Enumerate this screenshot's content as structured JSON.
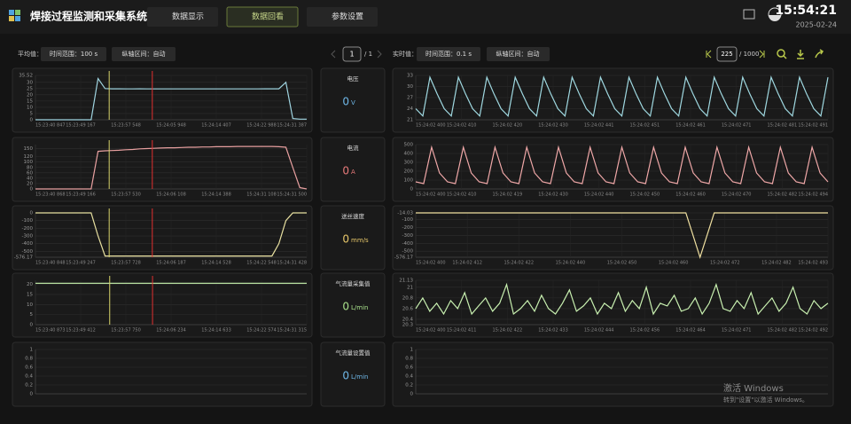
{
  "header": {
    "title": "焊接过程监测和采集系统",
    "tabs": [
      "数据显示",
      "数据回看",
      "参数设置"
    ],
    "time": "15:54:21",
    "date": "2025-02-24"
  },
  "left_toolbar": {
    "label": "平均值：",
    "range": "时间范围：100 s",
    "region": "纵轴区间：自动"
  },
  "pager": {
    "current": 1,
    "total": "/ 1"
  },
  "right_toolbar": {
    "label": "实时值：",
    "range": "时间范围：0.1 s",
    "region": "纵轴区间：自动",
    "frame": 225,
    "frame_total": "/ 1000"
  },
  "readouts": [
    {
      "name": "电压",
      "value": 0,
      "unit": "V",
      "color": "#6fb8e8"
    },
    {
      "name": "电流",
      "value": 0,
      "unit": "A",
      "color": "#e87a7a"
    },
    {
      "name": "送丝速度",
      "value": 0,
      "unit": "mm/s",
      "color": "#e8c86a"
    },
    {
      "name": "气流量采集值",
      "value": 0,
      "unit": "L/min",
      "color": "#a8e08a"
    },
    {
      "name": "气流量设置值",
      "value": 0,
      "unit": "L/min",
      "color": "#6fb8e8"
    }
  ],
  "left_charts": [
    {
      "type": "line",
      "color": "#9fd4e0",
      "ylim": [
        0,
        35.52
      ],
      "yticks": [
        0,
        5,
        10,
        15,
        20,
        25,
        30,
        35.52
      ],
      "xtick_labels": [
        "15:23:40 847",
        "15:23:49 167",
        "15:23:57 548",
        "15:24:05 948",
        "15:24:14 407",
        "15:24:22 988",
        "15:24:31 387"
      ],
      "values": [
        0,
        0,
        0,
        0,
        0,
        0,
        0,
        0,
        0,
        33,
        25,
        24.8,
        24.8,
        24.7,
        24.7,
        24.8,
        24.7,
        24.7,
        24.7,
        24.7,
        24.7,
        24.7,
        24.7,
        24.7,
        24.7,
        24.7,
        24.7,
        24.7,
        24.7,
        24.7,
        24.7,
        24.7,
        24.7,
        24.8,
        24.8,
        24.8,
        30,
        1,
        0.5,
        0.5
      ],
      "cursors": [
        {
          "color": "#d8d46a",
          "x": 10.6
        },
        {
          "color": "#e03030",
          "x": 16.8
        }
      ]
    },
    {
      "type": "line",
      "color": "#e8a0a0",
      "ylim": [
        0,
        165
      ],
      "yticks": [
        0,
        20,
        40,
        60,
        80,
        100,
        120,
        150
      ],
      "xtick_labels": [
        "15:23:40 868",
        "15:23:49 166",
        "15:23:57 530",
        "15:24:06 108",
        "15:24:14 388",
        "15:24:31 108",
        "15:24:31 500"
      ],
      "values": [
        0,
        0,
        0,
        0,
        0,
        0,
        0,
        0,
        0,
        140,
        142,
        143,
        144,
        146,
        147,
        149,
        150,
        151,
        152,
        153,
        153,
        154,
        155,
        155,
        156,
        156,
        157,
        157,
        157,
        158,
        158,
        158,
        158,
        158,
        158,
        157,
        155,
        80,
        5,
        0
      ],
      "cursors": [
        {
          "color": "#d8d46a",
          "x": 10.6
        },
        {
          "color": "#e03030",
          "x": 16.8
        }
      ]
    },
    {
      "type": "line",
      "color": "#e8e0a0",
      "ylim": [
        -576.17,
        0
      ],
      "yticks": [
        -576.17,
        -500,
        -400,
        -300,
        -200,
        -100,
        0
      ],
      "xtick_labels": [
        "15:23:40 848",
        "15:23:49 247",
        "15:23:57 728",
        "15:24:06 187",
        "15:24:14 528",
        "15:24:22 548",
        "15:24:31 428"
      ],
      "values": [
        0,
        0,
        0,
        0,
        0,
        0,
        0,
        0,
        0,
        -300,
        -560,
        -560,
        -560,
        -560,
        -560,
        -560,
        -560,
        -560,
        -560,
        -560,
        -560,
        -560,
        -560,
        -560,
        -560,
        -560,
        -560,
        -560,
        -560,
        -560,
        -560,
        -560,
        -560,
        -560,
        -560,
        -400,
        -100,
        0,
        0,
        0
      ],
      "cursors": [
        {
          "color": "#d8d46a",
          "x": 10.6
        },
        {
          "color": "#e03030",
          "x": 16.8
        }
      ]
    },
    {
      "type": "line",
      "color": "#b8e0a0",
      "ylim": [
        0,
        22
      ],
      "yticks": [
        0,
        5,
        10,
        15,
        20
      ],
      "xtick_labels": [
        "15:23:40 873",
        "15:23:49 412",
        "15:23:57 750",
        "15:24:06 234",
        "15:24:14 633",
        "15:24:22 574",
        "15:24:31 315"
      ],
      "values": [
        20.5,
        20.5,
        20.5,
        20.5,
        20.5,
        20.5,
        20.5,
        20.5,
        20.5,
        20.5,
        20.5,
        20.5,
        20.5,
        20.5,
        20.5,
        20.5,
        20.5,
        20.5,
        20.5,
        20.5
      ],
      "cursors": [
        {
          "color": "#d8d46a",
          "x": 5.2
        },
        {
          "color": "#e03030",
          "x": 8.2
        }
      ]
    },
    {
      "type": "line",
      "ylim": [
        0,
        1
      ],
      "yticks": [
        0,
        0.2,
        0.4,
        0.6,
        0.8,
        1
      ]
    }
  ],
  "right_charts": [
    {
      "type": "line",
      "color": "#9fd8e0",
      "ylim": [
        21,
        33
      ],
      "yticks": [
        21,
        24,
        27,
        30,
        33
      ],
      "xtick_labels": [
        "15:24:02 400",
        "15:24:02 410",
        "15:24:02 420",
        "15:24:02 430",
        "15:24:02 441",
        "15:24:02 451",
        "15:24:02 461",
        "15:24:02 471",
        "15:24:02 481",
        "15:24:02 491"
      ],
      "values": [
        24,
        22,
        32.5,
        28,
        24,
        22,
        32.5,
        28,
        24,
        22,
        32.5,
        28,
        24,
        22,
        32.5,
        28,
        24,
        22,
        32.5,
        28,
        24,
        22,
        32.5,
        28,
        24,
        22,
        32.5,
        28,
        24,
        22,
        32.5,
        28,
        24,
        22,
        32.5,
        28,
        24,
        22,
        32.5,
        28,
        24,
        22,
        32.5,
        28,
        24,
        22,
        32.5,
        28,
        24,
        22,
        32.5,
        28,
        24,
        22,
        32.5,
        28,
        24,
        22,
        32.5
      ]
    },
    {
      "type": "line",
      "color": "#f0a8a8",
      "ylim": [
        0,
        500
      ],
      "yticks": [
        0,
        100,
        200,
        300,
        400,
        500
      ],
      "xtick_labels": [
        "15:24:02 400",
        "15:24:02 410",
        "15:24:02 419",
        "15:24:02 430",
        "15:24:02 440",
        "15:24:02 450",
        "15:24:02 460",
        "15:24:02 470",
        "15:24:02 482",
        "15:24:02 494"
      ],
      "values": [
        80,
        60,
        470,
        180,
        80,
        60,
        470,
        180,
        80,
        60,
        470,
        180,
        80,
        60,
        470,
        180,
        80,
        60,
        470,
        180,
        80,
        60,
        470,
        180,
        80,
        60,
        470,
        180,
        80,
        60,
        470,
        180,
        80,
        60,
        470,
        180,
        80,
        60,
        470,
        180,
        80,
        60,
        470,
        180,
        80,
        60,
        470,
        180,
        80,
        60,
        470,
        180,
        80
      ]
    },
    {
      "type": "line",
      "color": "#f0e0a0",
      "ylim": [
        -576.17,
        -14.03
      ],
      "yticks": [
        -576.17,
        -500,
        -400,
        -300,
        -200,
        -100,
        -14.03
      ],
      "xtick_labels": [
        "15:24:02 400",
        "15:24:02 412",
        "15:24:02 422",
        "15:24:02 440",
        "15:24:02 450",
        "15:24:02 460",
        "15:24:02 472",
        "15:24:02 482",
        "15:24:02 493"
      ],
      "values": [
        -14.03,
        -14.03,
        -14.03,
        -14.03,
        -14.03,
        -14.03,
        -14.03,
        -14.03,
        -14.03,
        -14.03,
        -14.03,
        -14.03,
        -14.03,
        -14.03,
        -14.03,
        -14.03,
        -14.03,
        -14.03,
        -14.03,
        -14.03,
        -576.17,
        -14.03,
        -14.03,
        -14.03,
        -14.03,
        -14.03,
        -14.03,
        -14.03,
        -14.03,
        -14.03
      ]
    },
    {
      "type": "line",
      "color": "#c8f0b0",
      "ylim": [
        20.3,
        21.13
      ],
      "yticks": [
        20.3,
        20.4,
        20.6,
        20.8,
        21,
        21.13
      ],
      "xtick_labels": [
        "15:24:02 400",
        "15:24:02 411",
        "15:24:02 422",
        "15:24:02 433",
        "15:24:02 444",
        "15:24:02 456",
        "15:24:02 464",
        "15:24:02 471",
        "15:24:02 482",
        "15:24:02 492"
      ],
      "values": [
        20.6,
        20.8,
        20.55,
        20.7,
        20.5,
        20.75,
        20.6,
        20.9,
        20.5,
        20.65,
        20.8,
        20.55,
        20.7,
        21.05,
        20.5,
        20.6,
        20.75,
        20.55,
        20.85,
        20.6,
        20.5,
        20.7,
        20.95,
        20.55,
        20.65,
        20.8,
        20.5,
        20.7,
        20.6,
        20.9,
        20.55,
        20.75,
        20.6,
        21,
        20.5,
        20.7,
        20.65,
        20.85,
        20.55,
        20.6,
        20.8,
        20.5,
        20.7,
        21.05,
        20.6,
        20.55,
        20.75,
        20.6,
        20.9,
        20.5,
        20.65,
        20.8,
        20.55,
        20.7,
        21,
        20.6,
        20.5,
        20.75,
        20.6,
        20.7
      ]
    },
    {
      "type": "line",
      "ylim": [
        0,
        1
      ],
      "yticks": [
        0,
        0.2,
        0.4,
        0.6,
        0.8,
        1
      ]
    }
  ],
  "watermark": {
    "line1": "激活 Windows",
    "line2": "转到\"设置\"以激活 Windows。"
  }
}
